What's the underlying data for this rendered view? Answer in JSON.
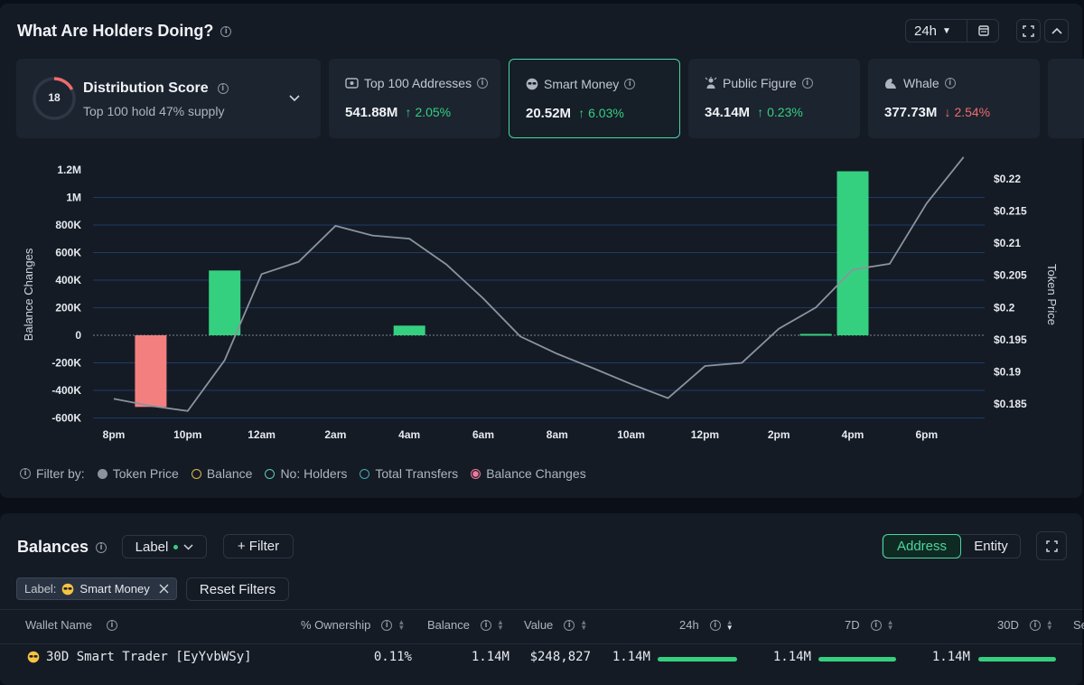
{
  "header": {
    "title": "What Are Holders Doing?",
    "timeframe": "24h",
    "calendar_icon": "calendar-icon",
    "expand_icon": "expand-icon",
    "collapse_icon": "chevron-up-icon"
  },
  "distribution": {
    "score": "18",
    "title": "Distribution Score",
    "subtitle": "Top 100 hold 47% supply"
  },
  "cards": [
    {
      "label": "Top 100 Addresses",
      "value": "541.88M",
      "change": "2.05%",
      "dir": "up",
      "icon": "wallet-icon"
    },
    {
      "label": "Smart Money",
      "value": "20.52M",
      "change": "6.03%",
      "dir": "up",
      "icon": "sunglasses-icon"
    },
    {
      "label": "Public Figure",
      "value": "34.14M",
      "change": "0.23%",
      "dir": "up",
      "icon": "public-figure-icon"
    },
    {
      "label": "Whale",
      "value": "377.73M",
      "change": "2.54%",
      "dir": "down",
      "icon": "whale-icon"
    }
  ],
  "chart_data": {
    "type": "bar",
    "ylabel": "Balance Changes",
    "y2label": "Token Price",
    "x_ticks": [
      "8pm",
      "10pm",
      "12am",
      "2am",
      "4am",
      "6am",
      "8am",
      "10am",
      "12pm",
      "2pm",
      "4pm",
      "6pm"
    ],
    "y_ticks": [
      "1.2M",
      "1M",
      "800K",
      "600K",
      "400K",
      "200K",
      "0",
      "-200K",
      "-400K",
      "-600K"
    ],
    "y2_ticks": [
      "$0.22",
      "$0.215",
      "$0.21",
      "$0.205",
      "$0.2",
      "$0.195",
      "$0.19",
      "$0.185"
    ],
    "ylim": [
      -600000,
      1200000
    ],
    "y2lim": [
      0.185,
      0.22
    ],
    "bars": [
      {
        "x": "9pm",
        "value": -520000
      },
      {
        "x": "11pm",
        "value": 470000
      },
      {
        "x": "4am",
        "value": 70000
      },
      {
        "x": "3pm",
        "value": 10000
      },
      {
        "x": "4pm",
        "value": 1190000
      }
    ],
    "price_series": {
      "name": "Token Price",
      "points": [
        [
          "8pm",
          0.1858
        ],
        [
          "9pm",
          0.1847
        ],
        [
          "10pm",
          0.1839
        ],
        [
          "11pm",
          0.1918
        ],
        [
          "12am",
          0.2052
        ],
        [
          "1am",
          0.2071
        ],
        [
          "2am",
          0.2127
        ],
        [
          "3am",
          0.2112
        ],
        [
          "4am",
          0.2107
        ],
        [
          "5am",
          0.2067
        ],
        [
          "6am",
          0.2014
        ],
        [
          "7am",
          0.1955
        ],
        [
          "8am",
          0.1928
        ],
        [
          "9am",
          0.1905
        ],
        [
          "10am",
          0.1881
        ],
        [
          "11am",
          0.1859
        ],
        [
          "12pm",
          0.1909
        ],
        [
          "1pm",
          0.1914
        ],
        [
          "2pm",
          0.1967
        ],
        [
          "3pm",
          0.2
        ],
        [
          "4pm",
          0.2059
        ],
        [
          "5pm",
          0.2068
        ],
        [
          "6pm",
          0.2162
        ],
        [
          "7pm",
          0.2234
        ]
      ]
    },
    "grid": true
  },
  "legend": {
    "title": "Filter by:",
    "items": [
      {
        "label": "Token Price",
        "color": "#8a939e",
        "filled": true
      },
      {
        "label": "Balance",
        "color": "#e0b84a",
        "filled": false
      },
      {
        "label": "No: Holders",
        "color": "#5ec8b8",
        "filled": false
      },
      {
        "label": "Total Transfers",
        "color": "#4aa8b8",
        "filled": false
      },
      {
        "label": "Balance Changes",
        "color": "#f07a9a",
        "filled": true
      }
    ]
  },
  "balances": {
    "title": "Balances",
    "label_dropdown": "Label",
    "filter_button": "+ Filter",
    "toggle": [
      "Address",
      "Entity"
    ],
    "chip": "Label:",
    "chip_value": "Smart Money",
    "reset": "Reset Filters",
    "columns": [
      "Wallet Name",
      "% Ownership",
      "Balance",
      "Value",
      "24h",
      "7D",
      "30D",
      "Se"
    ],
    "rows": [
      {
        "wallet": "30D Smart Trader [EyYvbWSy]",
        "ownership": "0.11%",
        "balance": "1.14M",
        "value": "$248,827",
        "d24": "1.14M",
        "d7": "1.14M",
        "d30": "1.14M"
      }
    ]
  }
}
